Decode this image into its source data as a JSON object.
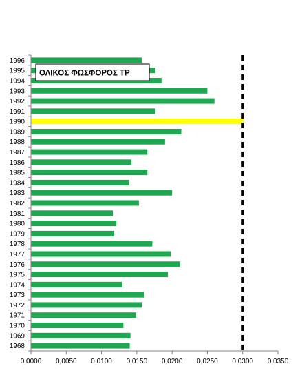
{
  "chart_data": {
    "type": "bar",
    "orientation": "horizontal",
    "title": "ΟΛΙΚΟΣ ΦΩΣΦΟΡΟΣ TP",
    "categories": [
      "1968",
      "1969",
      "1970",
      "1971",
      "1972",
      "1973",
      "1974",
      "1975",
      "1976",
      "1977",
      "1978",
      "1979",
      "1980",
      "1981",
      "1982",
      "1983",
      "1984",
      "1985",
      "1986",
      "1987",
      "1988",
      "1989",
      "1990",
      "1991",
      "1992",
      "1993",
      "1994",
      "1995",
      "1996"
    ],
    "values": [
      0.014,
      0.0141,
      0.0131,
      0.0149,
      0.0157,
      0.016,
      0.0129,
      0.0194,
      0.0211,
      0.0198,
      0.0172,
      0.0118,
      0.0121,
      0.0116,
      0.0153,
      0.02,
      0.0139,
      0.0165,
      0.0142,
      0.0165,
      0.019,
      0.0213,
      0.0301,
      0.0176,
      0.026,
      0.025,
      0.0185,
      0.0176,
      0.0157
    ],
    "highlight_category": "1990",
    "colors": {
      "bar": "#1fa84f",
      "highlight": "#ffff00",
      "reference_line": "#000000"
    },
    "reference_line": {
      "value": 0.03,
      "style": "dashed"
    },
    "xlim": [
      0.0,
      0.035
    ],
    "x_ticks": [
      "0,0000",
      "0,0050",
      "0,0100",
      "0,0150",
      "0,0200",
      "0,0250",
      "0,0300",
      "0,0350"
    ],
    "xlabel": "",
    "ylabel": "",
    "grid": false,
    "legend": "none"
  }
}
